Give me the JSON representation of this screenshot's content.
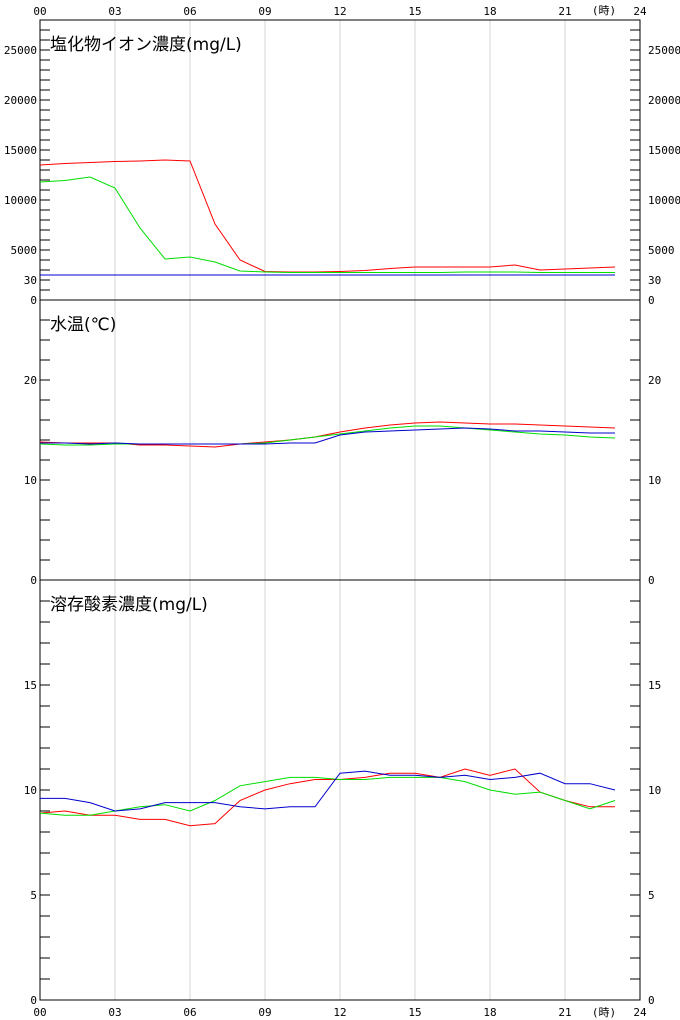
{
  "time_axis": {
    "hour_labels": [
      "00",
      "03",
      "06",
      "09",
      "12",
      "15",
      "18",
      "21",
      "24"
    ],
    "unit_label": "(時)"
  },
  "chart_data": [
    {
      "type": "line",
      "title": "塩化物イオン濃度(mg/L)",
      "ylim": [
        0,
        28000
      ],
      "yticks": [
        0,
        5000,
        10000,
        15000,
        20000,
        25000
      ],
      "ytick_labels": [
        "0",
        "5000",
        "10000",
        "15000",
        "20000",
        "25000"
      ],
      "x": [
        0,
        1,
        2,
        3,
        4,
        5,
        6,
        7,
        8,
        9,
        10,
        11,
        12,
        13,
        14,
        15,
        16,
        17,
        18,
        19,
        20,
        21,
        22,
        23
      ],
      "series": [
        {
          "color": "#ff0000",
          "values": [
            13500,
            13650,
            13750,
            13850,
            13900,
            14000,
            13900,
            7600,
            4000,
            2850,
            2800,
            2800,
            2850,
            2950,
            3150,
            3300,
            3300,
            3300,
            3300,
            3500,
            3000,
            3100,
            3200,
            3300
          ]
        },
        {
          "color": "#00dd00",
          "values": [
            11800,
            11950,
            12300,
            11200,
            7200,
            4100,
            4300,
            3800,
            2900,
            2800,
            2750,
            2750,
            2750,
            2750,
            2750,
            2750,
            2750,
            2800,
            2800,
            2800,
            2750,
            2750,
            2750,
            2750
          ]
        },
        {
          "color": "#0000cc",
          "values": [
            2500,
            2500,
            2500,
            2500,
            2500,
            2500,
            2500,
            2500,
            2500,
            2500,
            2500,
            2500,
            2500,
            2500,
            2500,
            2500,
            2500,
            2500,
            2500,
            2500,
            2500,
            2500,
            2500,
            2500
          ]
        }
      ]
    },
    {
      "type": "line",
      "title": "水温(℃)",
      "ylim": [
        0,
        28
      ],
      "yticks": [
        0,
        10,
        20,
        30
      ],
      "ytick_labels": [
        "0",
        "10",
        "20",
        "30"
      ],
      "x": [
        0,
        1,
        2,
        3,
        4,
        5,
        6,
        7,
        8,
        9,
        10,
        11,
        12,
        13,
        14,
        15,
        16,
        17,
        18,
        19,
        20,
        21,
        22,
        23
      ],
      "series": [
        {
          "color": "#ff0000",
          "values": [
            13.8,
            13.7,
            13.7,
            13.7,
            13.5,
            13.5,
            13.4,
            13.3,
            13.6,
            13.8,
            14.0,
            14.3,
            14.8,
            15.2,
            15.5,
            15.7,
            15.8,
            15.7,
            15.6,
            15.6,
            15.5,
            15.4,
            15.3,
            15.2
          ]
        },
        {
          "color": "#00dd00",
          "values": [
            13.6,
            13.5,
            13.5,
            13.6,
            13.6,
            13.6,
            13.6,
            13.6,
            13.6,
            13.7,
            14.0,
            14.3,
            14.6,
            14.9,
            15.2,
            15.4,
            15.4,
            15.2,
            15.0,
            14.8,
            14.6,
            14.5,
            14.3,
            14.2
          ]
        },
        {
          "color": "#0000cc",
          "values": [
            13.7,
            13.7,
            13.6,
            13.7,
            13.6,
            13.6,
            13.6,
            13.6,
            13.6,
            13.6,
            13.7,
            13.7,
            14.5,
            14.8,
            14.9,
            15.0,
            15.1,
            15.2,
            15.1,
            14.9,
            14.9,
            14.8,
            14.7,
            14.7
          ]
        }
      ]
    },
    {
      "type": "line",
      "title": "溶存酸素濃度(mg/L)",
      "ylim": [
        0,
        20
      ],
      "yticks": [
        0,
        5,
        10,
        15
      ],
      "ytick_labels": [
        "0",
        "5",
        "10",
        "15"
      ],
      "x": [
        0,
        1,
        2,
        3,
        4,
        5,
        6,
        7,
        8,
        9,
        10,
        11,
        12,
        13,
        14,
        15,
        16,
        17,
        18,
        19,
        20,
        21,
        22,
        23
      ],
      "series": [
        {
          "color": "#ff0000",
          "values": [
            8.9,
            9.0,
            8.8,
            8.8,
            8.6,
            8.6,
            8.3,
            8.4,
            9.5,
            10.0,
            10.3,
            10.5,
            10.5,
            10.6,
            10.8,
            10.8,
            10.6,
            11.0,
            10.7,
            11.0,
            9.9,
            9.5,
            9.2,
            9.2
          ]
        },
        {
          "color": "#00dd00",
          "values": [
            8.9,
            8.8,
            8.8,
            9.0,
            9.2,
            9.3,
            9.0,
            9.5,
            10.2,
            10.4,
            10.6,
            10.6,
            10.5,
            10.5,
            10.6,
            10.6,
            10.6,
            10.4,
            10.0,
            9.8,
            9.9,
            9.5,
            9.1,
            9.5
          ]
        },
        {
          "color": "#0000cc",
          "values": [
            9.6,
            9.6,
            9.4,
            9.0,
            9.1,
            9.4,
            9.4,
            9.4,
            9.2,
            9.1,
            9.2,
            9.2,
            10.8,
            10.9,
            10.7,
            10.7,
            10.6,
            10.7,
            10.5,
            10.6,
            10.8,
            10.3,
            10.3,
            10.0
          ]
        }
      ]
    }
  ]
}
